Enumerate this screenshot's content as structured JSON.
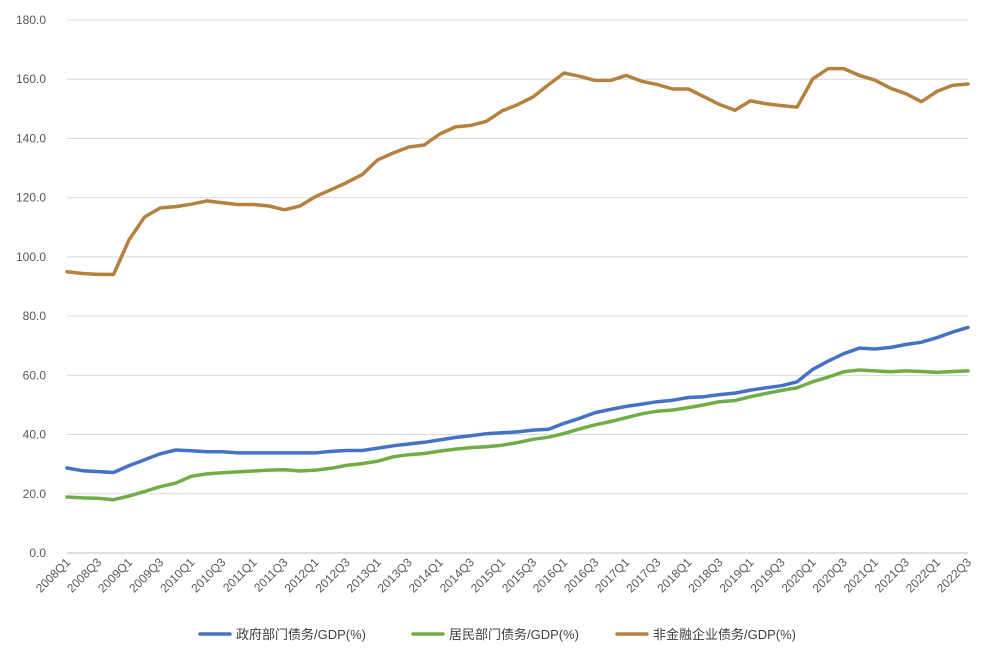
{
  "chart_data": {
    "type": "line",
    "title": "",
    "xlabel": "",
    "ylabel": "",
    "ylim": [
      0,
      180
    ],
    "y_ticks": [
      "0.0",
      "20.0",
      "40.0",
      "60.0",
      "80.0",
      "100.0",
      "120.0",
      "140.0",
      "160.0",
      "180.0"
    ],
    "grid": true,
    "legend": "bottom",
    "x": [
      "2008Q1",
      "2008Q2",
      "2008Q3",
      "2008Q4",
      "2009Q1",
      "2009Q2",
      "2009Q3",
      "2009Q4",
      "2010Q1",
      "2010Q2",
      "2010Q3",
      "2010Q4",
      "2011Q1",
      "2011Q2",
      "2011Q3",
      "2011Q4",
      "2012Q1",
      "2012Q2",
      "2012Q3",
      "2012Q4",
      "2013Q1",
      "2013Q2",
      "2013Q3",
      "2013Q4",
      "2014Q1",
      "2014Q2",
      "2014Q3",
      "2014Q4",
      "2015Q1",
      "2015Q2",
      "2015Q3",
      "2015Q4",
      "2016Q1",
      "2016Q2",
      "2016Q3",
      "2016Q4",
      "2017Q1",
      "2017Q2",
      "2017Q3",
      "2017Q4",
      "2018Q1",
      "2018Q2",
      "2018Q3",
      "2018Q4",
      "2019Q1",
      "2019Q2",
      "2019Q3",
      "2019Q4",
      "2020Q1",
      "2020Q2",
      "2020Q3",
      "2020Q4",
      "2021Q1",
      "2021Q2",
      "2021Q3",
      "2021Q4",
      "2022Q1",
      "2022Q2",
      "2022Q3"
    ],
    "x_tick_labels": [
      "2008Q1",
      "2008Q3",
      "2009Q1",
      "2009Q3",
      "2010Q1",
      "2010Q3",
      "2011Q1",
      "2011Q3",
      "2012Q1",
      "2012Q3",
      "2013Q1",
      "2013Q3",
      "2014Q1",
      "2014Q3",
      "2015Q1",
      "2015Q3",
      "2016Q1",
      "2016Q3",
      "2017Q1",
      "2017Q3",
      "2018Q1",
      "2018Q3",
      "2019Q1",
      "2019Q3",
      "2020Q1",
      "2020Q3",
      "2021Q1",
      "2021Q3",
      "2022Q1",
      "2022Q3"
    ],
    "series": [
      {
        "name": "政府部门债务/GDP(%)",
        "color": "#4472C4",
        "values": [
          28.7,
          27.8,
          27.5,
          27.2,
          29.5,
          31.5,
          33.5,
          34.8,
          34.5,
          34.2,
          34.2,
          33.8,
          33.8,
          33.8,
          33.8,
          33.8,
          33.8,
          34.3,
          34.6,
          34.6,
          35.4,
          36.2,
          36.8,
          37.4,
          38.2,
          39.0,
          39.6,
          40.3,
          40.6,
          40.9,
          41.5,
          41.8,
          43.8,
          45.5,
          47.4,
          48.5,
          49.5,
          50.3,
          51.1,
          51.6,
          52.5,
          52.8,
          53.5,
          54.0,
          55.0,
          55.8,
          56.5,
          57.8,
          62.0,
          64.8,
          67.3,
          69.2,
          68.9,
          69.4,
          70.4,
          71.2,
          72.7,
          74.6,
          76.2
        ]
      },
      {
        "name": "居民部门债务/GDP(%)",
        "color": "#70AD47",
        "values": [
          18.9,
          18.6,
          18.5,
          18.0,
          19.2,
          20.8,
          22.4,
          23.6,
          25.9,
          26.7,
          27.1,
          27.4,
          27.7,
          28.0,
          28.1,
          27.7,
          28.0,
          28.6,
          29.6,
          30.2,
          31.0,
          32.5,
          33.2,
          33.6,
          34.4,
          35.1,
          35.6,
          35.9,
          36.4,
          37.3,
          38.4,
          39.1,
          40.4,
          41.9,
          43.3,
          44.4,
          45.7,
          47.0,
          47.9,
          48.3,
          49.1,
          50.0,
          51.1,
          51.5,
          52.8,
          53.9,
          54.9,
          55.8,
          57.8,
          59.4,
          61.2,
          61.8,
          61.5,
          61.2,
          61.5,
          61.3,
          61.0,
          61.3,
          61.5
        ]
      },
      {
        "name": "非金融企业债务/GDP(%)",
        "color": "#B5813F",
        "values": [
          95.0,
          94.4,
          94.1,
          94.1,
          105.8,
          113.5,
          116.5,
          117.0,
          117.8,
          118.9,
          118.3,
          117.7,
          117.7,
          117.2,
          115.9,
          117.2,
          120.4,
          122.7,
          125.1,
          127.8,
          132.8,
          135.1,
          137.1,
          137.8,
          141.5,
          143.9,
          144.4,
          145.8,
          149.3,
          151.4,
          154.0,
          158.2,
          162.1,
          161.0,
          159.6,
          159.6,
          161.3,
          159.3,
          158.2,
          156.7,
          156.7,
          154.1,
          151.5,
          149.5,
          152.7,
          151.7,
          151.1,
          150.6,
          160.1,
          163.6,
          163.6,
          161.3,
          159.7,
          157.0,
          155.1,
          152.4,
          155.9,
          157.9,
          158.4
        ]
      }
    ]
  }
}
